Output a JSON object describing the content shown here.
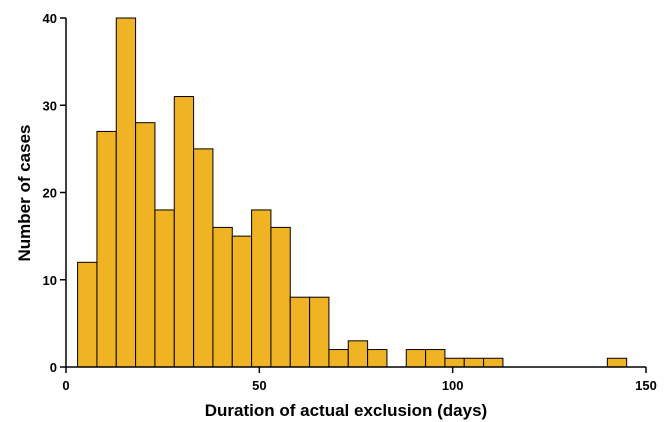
{
  "chart_data": {
    "type": "bar",
    "title": "",
    "xlabel": "Duration of actual exclusion (days)",
    "ylabel": "Number of cases",
    "xlim": [
      0,
      150
    ],
    "ylim": [
      0,
      40
    ],
    "bin_width": 5,
    "bins": [
      {
        "x0": 3,
        "x1": 8,
        "value": 12
      },
      {
        "x0": 8,
        "x1": 13,
        "value": 27
      },
      {
        "x0": 13,
        "x1": 18,
        "value": 40
      },
      {
        "x0": 18,
        "x1": 23,
        "value": 28
      },
      {
        "x0": 23,
        "x1": 28,
        "value": 18
      },
      {
        "x0": 28,
        "x1": 33,
        "value": 31
      },
      {
        "x0": 33,
        "x1": 38,
        "value": 25
      },
      {
        "x0": 38,
        "x1": 43,
        "value": 16
      },
      {
        "x0": 43,
        "x1": 48,
        "value": 15
      },
      {
        "x0": 48,
        "x1": 53,
        "value": 18
      },
      {
        "x0": 53,
        "x1": 58,
        "value": 16
      },
      {
        "x0": 58,
        "x1": 63,
        "value": 8
      },
      {
        "x0": 63,
        "x1": 68,
        "value": 8
      },
      {
        "x0": 68,
        "x1": 73,
        "value": 2
      },
      {
        "x0": 73,
        "x1": 78,
        "value": 3
      },
      {
        "x0": 78,
        "x1": 83,
        "value": 2
      },
      {
        "x0": 88,
        "x1": 93,
        "value": 2
      },
      {
        "x0": 93,
        "x1": 98,
        "value": 2
      },
      {
        "x0": 98,
        "x1": 103,
        "value": 1
      },
      {
        "x0": 103,
        "x1": 108,
        "value": 1
      },
      {
        "x0": 108,
        "x1": 113,
        "value": 1
      },
      {
        "x0": 140,
        "x1": 145,
        "value": 1
      }
    ],
    "x_ticks": [
      0,
      50,
      100,
      150
    ],
    "x_tick_labels": [
      "0",
      "50",
      "100",
      "150"
    ],
    "y_ticks": [
      0,
      10,
      20,
      30,
      40
    ],
    "y_tick_labels": [
      "0",
      "10",
      "20",
      "30",
      "40"
    ],
    "bar_color": "#F0B323",
    "bar_edge_color": "#000000",
    "grid": false,
    "legend": "none"
  }
}
